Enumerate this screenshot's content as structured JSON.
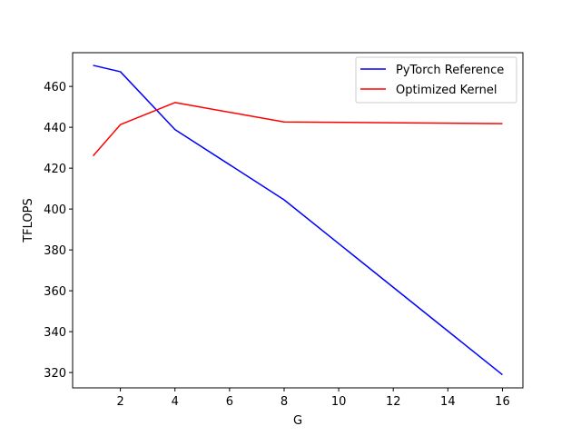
{
  "chart_data": {
    "type": "line",
    "title": "",
    "xlabel": "G",
    "ylabel": "TFLOPS",
    "xlim": [
      0.25,
      16.75
    ],
    "ylim": [
      312.5,
      476.5
    ],
    "xticks": [
      2,
      4,
      6,
      8,
      10,
      12,
      14,
      16
    ],
    "yticks": [
      320,
      340,
      360,
      380,
      400,
      420,
      440,
      460
    ],
    "grid": false,
    "legend_position": "top-right",
    "x": [
      1,
      2,
      4,
      8,
      16
    ],
    "series": [
      {
        "name": "PyTorch Reference",
        "color": "#0000ff",
        "values": [
          470.3,
          467.2,
          438.9,
          404.5,
          318.9
        ]
      },
      {
        "name": "Optimized Kernel",
        "color": "#ff0000",
        "values": [
          426.0,
          441.3,
          452.1,
          442.6,
          441.8
        ]
      }
    ]
  }
}
